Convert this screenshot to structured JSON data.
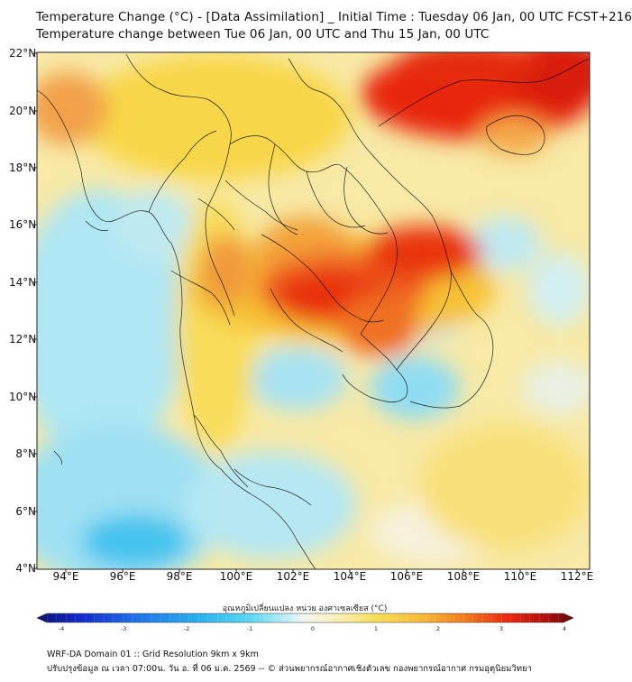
{
  "header": {
    "title_line1": "Temperature Change (°C) - [Data Assimilation] _ Initial Time : Tuesday 06 Jan, 00 UTC FCST+216",
    "title_line2": "Temperature change between Tue 06 Jan, 00 UTC and Thu 15 Jan, 00 UTC"
  },
  "map": {
    "lat_labels": [
      "22°N",
      "20°N",
      "18°N",
      "16°N",
      "14°N",
      "12°N",
      "10°N",
      "8°N",
      "6°N",
      "4°N"
    ],
    "lon_labels": [
      "94°E",
      "96°E",
      "98°E",
      "100°E",
      "102°E",
      "104°E",
      "106°E",
      "108°E",
      "110°E",
      "112°E"
    ],
    "colors": {
      "cold_deep": "#0a1a8a",
      "cold": "#29c4f0",
      "neutral": "#f5f3e8",
      "warm": "#f7d84a",
      "hot": "#f27a1e",
      "very_hot": "#e8200e",
      "extreme": "#7a0a0a",
      "border_lines": "#000000",
      "frame": "#222222"
    }
  },
  "colorbar": {
    "label": "อุณหภูมิเปลี่ยนแปลง หน่วย องศาเซลเซียส (°C)",
    "ticks": [
      "-4",
      "-3",
      "-2",
      "-1",
      "0",
      "1",
      "2",
      "3",
      "4"
    ]
  },
  "footer": {
    "line1": "WRF-DA Domain 01 :: Grid Resolution 9km x 9km",
    "line2": "ปรับปรุงข้อมูล ณ เวลา 07:00น. วัน อ. ที่ 06 ม.ค. 2569 -- © ส่วนพยากรณ์อากาศเชิงตัวเลข กองพยากรณ์อากาศ กรมอุตุนิยมวิทยา"
  }
}
